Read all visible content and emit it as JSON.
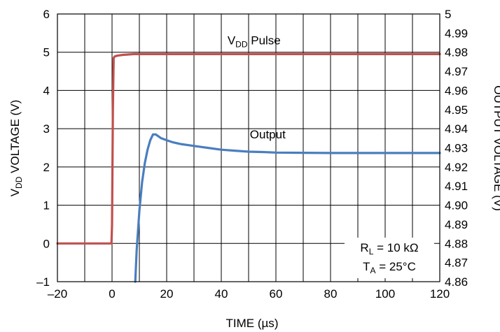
{
  "chart_data": {
    "type": "line",
    "title": "",
    "xlabel": {
      "main": "TIME (",
      "unit": "µs",
      "close": ")"
    },
    "ylabel_left": {
      "pre": "V",
      "sub": "DD",
      "post": " VOLTAGE (V)"
    },
    "ylabel_right": "OUTPUT VOLTAGE (V)",
    "xlim": [
      -20,
      120
    ],
    "ylim_left": [
      -1,
      6
    ],
    "ylim_right": [
      4.86,
      5.0
    ],
    "x_ticks": [
      "–20",
      "0",
      "20",
      "40",
      "60",
      "80",
      "100",
      "120"
    ],
    "x_tick_values": [
      -20,
      0,
      20,
      40,
      60,
      80,
      100,
      120
    ],
    "y_left_ticks": [
      "–1",
      "0",
      "1",
      "2",
      "3",
      "4",
      "5",
      "6"
    ],
    "y_left_tick_values": [
      -1,
      0,
      1,
      2,
      3,
      4,
      5,
      6
    ],
    "y_right_ticks": [
      "4.86",
      "4.87",
      "4.88",
      "4.89",
      "4.90",
      "4.91",
      "4.92",
      "4.93",
      "4.94",
      "4.95",
      "4.96",
      "4.97",
      "4.98",
      "4.99",
      "5"
    ],
    "y_right_tick_values": [
      4.86,
      4.87,
      4.88,
      4.89,
      4.9,
      4.91,
      4.92,
      4.93,
      4.94,
      4.95,
      4.96,
      4.97,
      4.98,
      4.99,
      5.0
    ],
    "grid": true,
    "series": [
      {
        "name_parts": {
          "pre": "V",
          "sub": "DD",
          "post": " Pulse"
        },
        "axis": "left",
        "color": "#c0504d",
        "x": [
          -20,
          -0.2,
          0,
          0.3,
          0.6,
          1,
          2,
          4,
          8,
          120
        ],
        "y": [
          0,
          0,
          0.5,
          3.5,
          4.85,
          4.89,
          4.91,
          4.93,
          4.95,
          4.95
        ]
      },
      {
        "name": "Output",
        "axis": "right",
        "color": "#4a7ebf",
        "x": [
          8.5,
          9,
          10,
          11,
          12,
          13,
          14,
          15,
          16,
          17,
          18,
          20,
          22,
          25,
          30,
          35,
          40,
          45,
          50,
          55,
          60,
          70,
          80,
          90,
          100,
          110,
          120
        ],
        "y": [
          4.86,
          4.876,
          4.897,
          4.912,
          4.922,
          4.929,
          4.934,
          4.937,
          4.937,
          4.936,
          4.935,
          4.934,
          4.933,
          4.932,
          4.931,
          4.93,
          4.929,
          4.9285,
          4.928,
          4.9278,
          4.9275,
          4.9274,
          4.9273,
          4.9273,
          4.9273,
          4.9273,
          4.9273
        ]
      }
    ],
    "annotations": {
      "rl": {
        "pre": "R",
        "sub": "L",
        "post": " = 10 kΩ"
      },
      "ta": {
        "pre": "T",
        "sub": "A",
        "post": " = 25°C"
      }
    }
  }
}
